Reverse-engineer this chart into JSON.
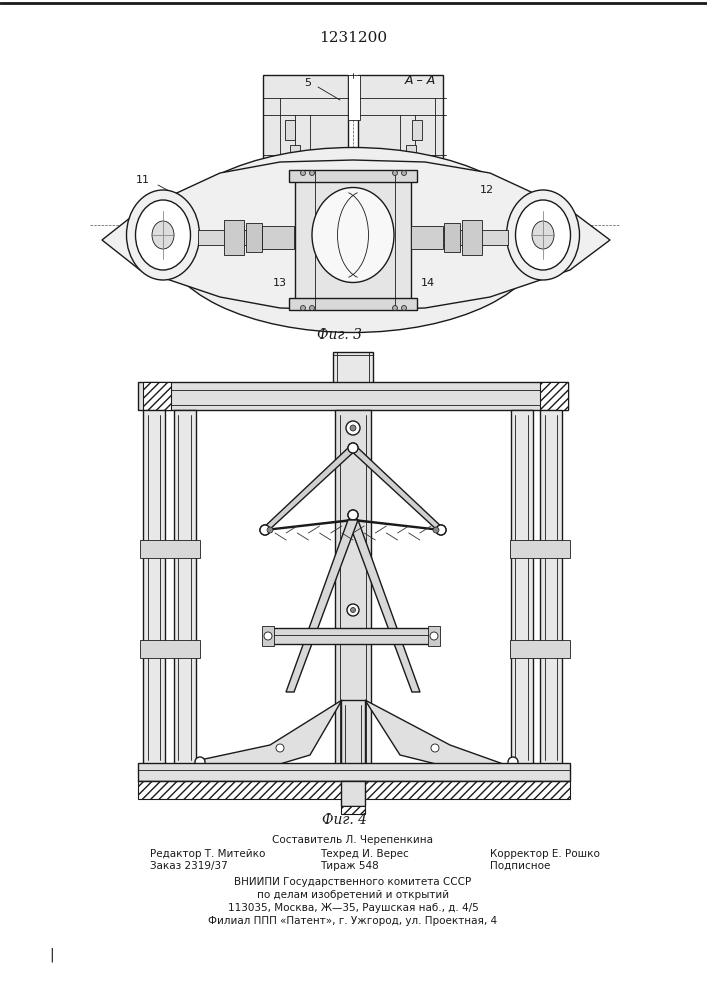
{
  "title": "1231200",
  "fig3_label": "Фиг. 3",
  "fig4_label": "Фиг. 4",
  "footer_line1": "Составитель Л. Черепенкина",
  "footer_col1_l1": "Редактор Т. Митейко",
  "footer_col1_l2": "Заказ 2319/37",
  "footer_col2_l1": "Техред И. Верес",
  "footer_col2_l2": "Тираж 548",
  "footer_col3_l1": "Корректор Е. Рошко",
  "footer_col3_l2": "Подписное",
  "footer_vniiipi_1": "ВНИИПИ Государственного комитета СССР",
  "footer_vniiipi_2": "по делам изобретений и открытий",
  "footer_vniiipi_3": "113035, Москва, Ж—35, Раушская наб., д. 4/5",
  "footer_vniiipi_4": "Филиал ППП «Патент», г. Ужгород, ул. Проектная, 4",
  "bg_color": "#ffffff",
  "line_color": "#1a1a1a"
}
